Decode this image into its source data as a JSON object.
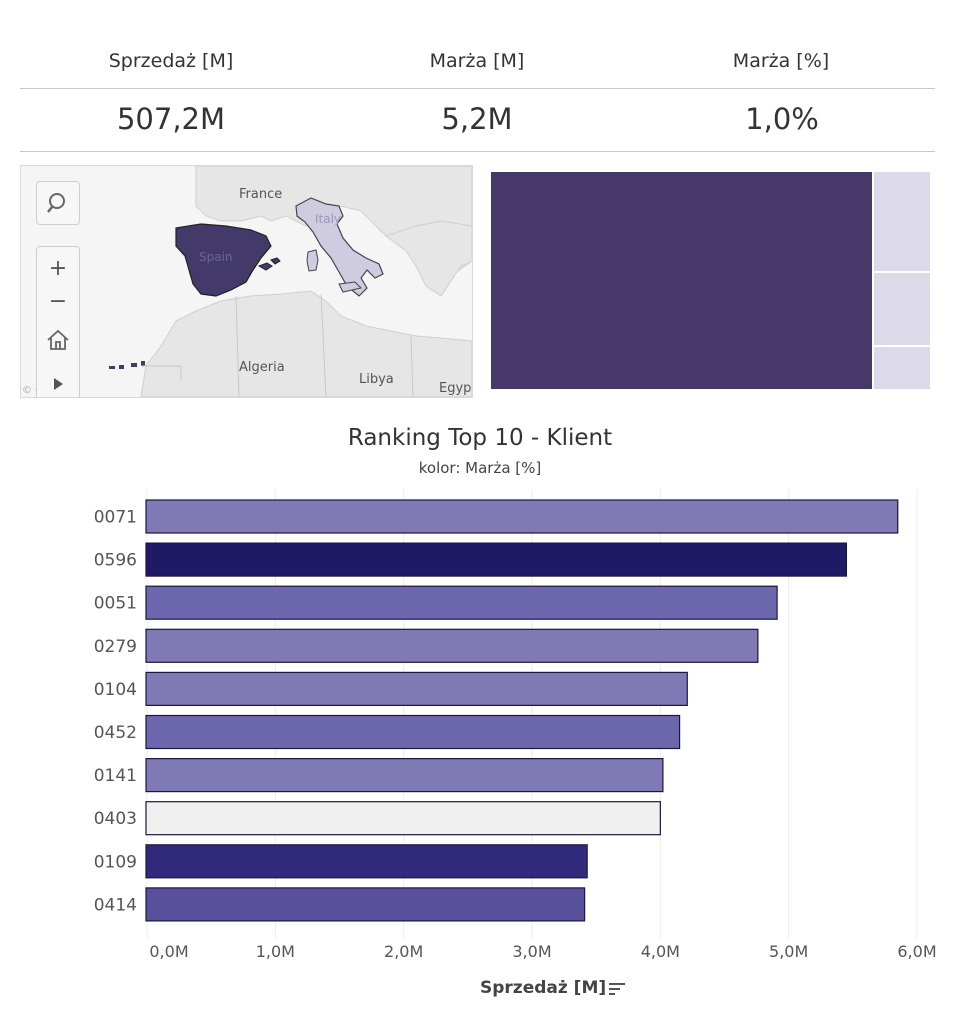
{
  "kpis": [
    {
      "label": "Sprzedaż [M]",
      "value": "507,2M"
    },
    {
      "label": "Marża [M]",
      "value": "5,2M"
    },
    {
      "label": "Marża [%]",
      "value": "1,0%"
    }
  ],
  "map": {
    "labels": {
      "france": "France",
      "spain": "Spain",
      "italy": "Italy",
      "algeria": "Algeria",
      "libya": "Libya",
      "egypt": "Egyp",
      "copyright": "© OSM"
    },
    "controls": {
      "search_icon": "search-icon",
      "zoom_in": "+",
      "zoom_out": "−",
      "home_icon": "home-icon",
      "play_icon": "play-icon"
    },
    "colors": {
      "spain": "#443a6a",
      "italy": "#cfcbe1",
      "land": "#e6e6e6",
      "sea": "#f5f5f5"
    }
  },
  "treemap": {
    "colors": {
      "main": "#463868",
      "light": "#dcd9e8"
    }
  },
  "chart_data": {
    "type": "bar",
    "orientation": "horizontal",
    "title": "Ranking Top 10 - Klient",
    "subtitle": "kolor: Marża [%]",
    "xlabel": "Sprzedaż [M]",
    "categories": [
      "0071",
      "0596",
      "0051",
      "0279",
      "0104",
      "0452",
      "0141",
      "0403",
      "0109",
      "0414"
    ],
    "values": [
      5.85,
      5.45,
      4.91,
      4.76,
      4.21,
      4.15,
      4.02,
      4.0,
      3.43,
      3.41
    ],
    "bar_colors": [
      "#7f79b5",
      "#1f1a66",
      "#6d68ad",
      "#7f79b5",
      "#7f79b5",
      "#6d68ad",
      "#7f79b5",
      "#f0f0f0",
      "#312a7c",
      "#59519b"
    ],
    "xlim": [
      0,
      6
    ],
    "xticks": [
      "0,0M",
      "1,0M",
      "2,0M",
      "3,0M",
      "4,0M",
      "5,0M",
      "6,0M"
    ],
    "grid": true
  }
}
